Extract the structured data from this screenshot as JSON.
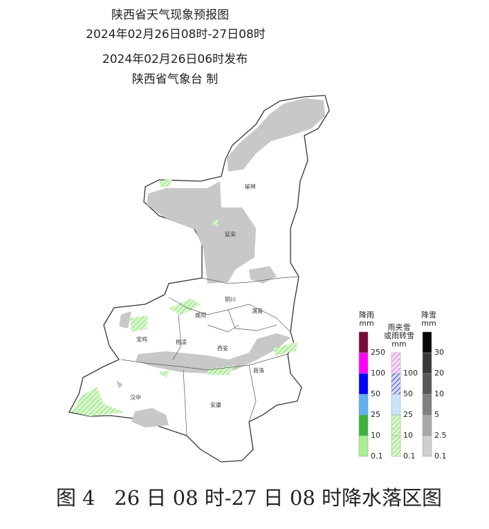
{
  "header": {
    "title": "陕西省天气现象预报图",
    "period": "2024年02月26日08时-27日08时",
    "issued": "2024年02月26日06时发布",
    "publisher": "陕西省气象台 制"
  },
  "cities": [
    "榆林",
    "延安",
    "铜川",
    "渭南",
    "咸阳",
    "宝鸡",
    "杨凌",
    "西安",
    "商洛",
    "汉中",
    "安康"
  ],
  "legend": {
    "rain": {
      "title": "降雨",
      "unit": "mm",
      "levels": [
        "0.1",
        "10",
        "25",
        "50",
        "100",
        "250"
      ]
    },
    "mixed": {
      "title": [
        "雨夹雪",
        "或雨转雪"
      ],
      "unit": "mm",
      "levels": [
        "0.1",
        "10",
        "25",
        "50",
        "100"
      ]
    },
    "snow": {
      "title": "降雪",
      "unit": "mm",
      "levels": [
        "0.1",
        "2.5",
        "5",
        "10",
        "20",
        "30"
      ]
    }
  },
  "caption": "图 4   26 日 08 时-27 日 08 时降水落区图"
}
